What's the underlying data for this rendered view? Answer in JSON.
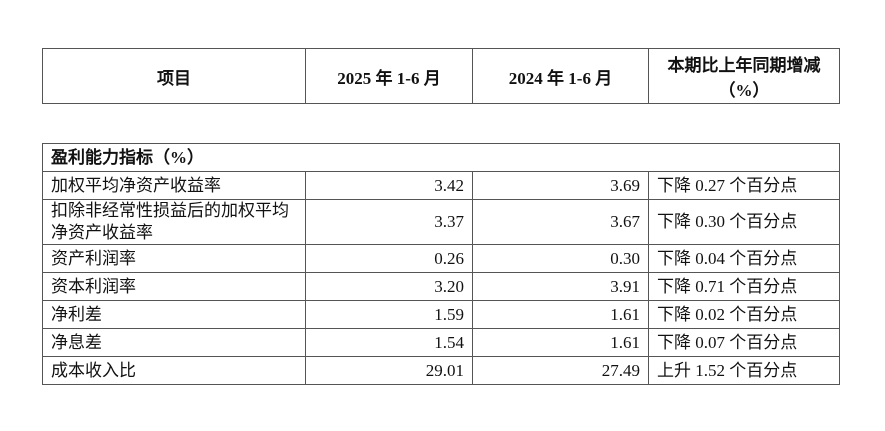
{
  "header": {
    "columns": [
      "项目",
      "2025 年 1-6 月",
      "2024 年 1-6 月",
      "本期比上年同期增减",
      "（%）"
    ]
  },
  "table": {
    "section": "盈利能力指标（%）",
    "rows": [
      [
        "加权平均净资产收益率",
        "3.42",
        "3.69",
        "下降 0.27 个百分点"
      ],
      [
        "扣除非经常性损益后的加权平均净资产收益率",
        "3.37",
        "3.67",
        "下降 0.30 个百分点"
      ],
      [
        "资产利润率",
        "0.26",
        "0.30",
        "下降 0.04 个百分点"
      ],
      [
        "资本利润率",
        "3.20",
        "3.91",
        "下降 0.71 个百分点"
      ],
      [
        "净利差",
        "1.59",
        "1.61",
        "下降 0.02 个百分点"
      ],
      [
        "净息差",
        "1.54",
        "1.61",
        "下降 0.07 个百分点"
      ],
      [
        "成本收入比",
        "29.01",
        "27.49",
        "上升 1.52 个百分点"
      ]
    ]
  }
}
